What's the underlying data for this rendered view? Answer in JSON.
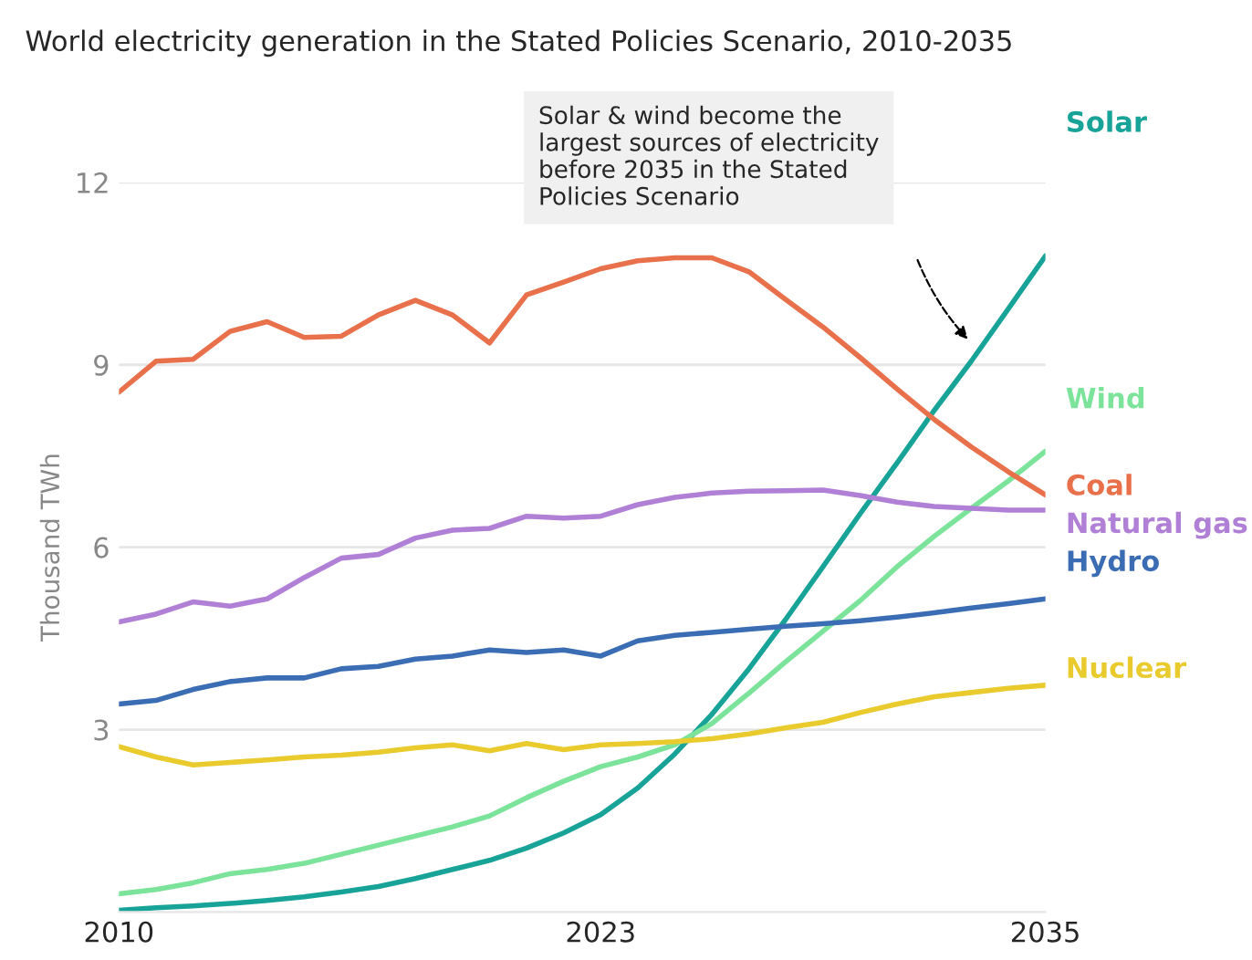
{
  "chart_data": {
    "type": "line",
    "title": "World electricity generation in the Stated Policies Scenario, 2010-2035",
    "ylabel": "Thousand TWh",
    "x": [
      2010,
      2011,
      2012,
      2013,
      2014,
      2015,
      2016,
      2017,
      2018,
      2019,
      2020,
      2021,
      2022,
      2023,
      2024,
      2025,
      2026,
      2027,
      2028,
      2029,
      2030,
      2031,
      2032,
      2033,
      2034,
      2035
    ],
    "series": [
      {
        "name": "Solar",
        "color": "#17a397",
        "values": [
          0.03,
          0.07,
          0.1,
          0.14,
          0.19,
          0.25,
          0.33,
          0.42,
          0.55,
          0.7,
          0.85,
          1.05,
          1.3,
          1.6,
          2.04,
          2.6,
          3.25,
          4.0,
          4.82,
          5.68,
          6.55,
          7.39,
          8.25,
          9.06,
          9.92,
          10.79
        ]
      },
      {
        "name": "Wind",
        "color": "#7be39a",
        "values": [
          0.3,
          0.37,
          0.48,
          0.63,
          0.7,
          0.8,
          0.95,
          1.1,
          1.25,
          1.4,
          1.58,
          1.88,
          2.15,
          2.39,
          2.55,
          2.75,
          3.1,
          3.6,
          4.12,
          4.62,
          5.12,
          5.68,
          6.18,
          6.64,
          7.09,
          7.58
        ]
      },
      {
        "name": "Coal",
        "color": "#e8704a",
        "values": [
          8.55,
          9.06,
          9.09,
          9.55,
          9.71,
          9.45,
          9.47,
          9.82,
          10.06,
          9.82,
          9.36,
          10.15,
          10.36,
          10.58,
          10.71,
          10.76,
          10.76,
          10.53,
          10.07,
          9.62,
          9.12,
          8.6,
          8.1,
          7.65,
          7.24,
          6.86
        ]
      },
      {
        "name": "Natural gas",
        "color": "#b07fd6",
        "values": [
          4.77,
          4.9,
          5.1,
          5.03,
          5.15,
          5.5,
          5.82,
          5.88,
          6.15,
          6.28,
          6.31,
          6.51,
          6.48,
          6.51,
          6.7,
          6.82,
          6.89,
          6.92,
          6.93,
          6.94,
          6.85,
          6.74,
          6.67,
          6.64,
          6.61,
          6.61
        ]
      },
      {
        "name": "Hydro",
        "color": "#3a6db3",
        "values": [
          3.42,
          3.48,
          3.66,
          3.79,
          3.85,
          3.85,
          4.0,
          4.04,
          4.16,
          4.21,
          4.31,
          4.27,
          4.31,
          4.21,
          4.46,
          4.55,
          4.6,
          4.65,
          4.7,
          4.74,
          4.79,
          4.85,
          4.92,
          5.0,
          5.07,
          5.15
        ]
      },
      {
        "name": "Nuclear",
        "color": "#eacb2e",
        "values": [
          2.72,
          2.55,
          2.42,
          2.46,
          2.5,
          2.55,
          2.58,
          2.63,
          2.7,
          2.75,
          2.65,
          2.77,
          2.67,
          2.75,
          2.77,
          2.8,
          2.85,
          2.93,
          3.03,
          3.12,
          3.28,
          3.42,
          3.54,
          3.61,
          3.68,
          3.73
        ]
      }
    ],
    "annotations": [
      "Solar & wind become the\nlargest sources of electricity\nbefore 2035 in the Stated\nPolicies Scenario"
    ],
    "xlim": [
      2010,
      2035
    ],
    "xticks": [
      2010,
      2023,
      2035
    ],
    "ylim": [
      0,
      12
    ],
    "yticks": [
      3,
      6,
      9,
      12
    ],
    "grid": "y",
    "legend": "right",
    "marker": "none",
    "line_style": "solid"
  }
}
